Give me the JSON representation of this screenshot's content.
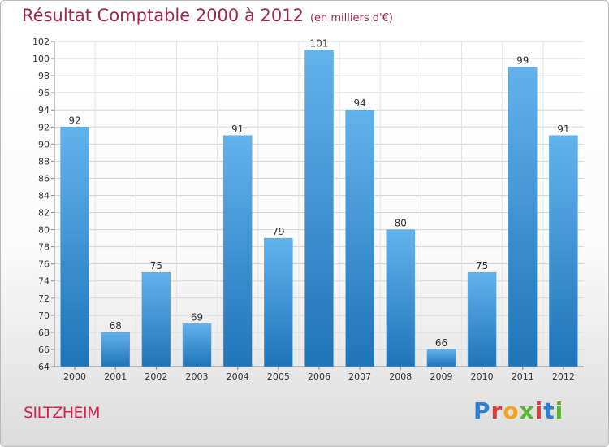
{
  "header": {
    "title": "Résultat Comptable 2000 à 2012",
    "subtitle": "(en milliers d'€)"
  },
  "footer": {
    "commune": "SILTZHEIM",
    "logo_text": "Proxiti",
    "logo_colors": [
      "#2e7fcf",
      "#e23a2e",
      "#f2a21c",
      "#5cb531",
      "#e23a2e",
      "#2e7fcf",
      "#5cb531"
    ]
  },
  "colors": {
    "bar_light": "#62b2ec",
    "bar_dark": "#1f74b8",
    "title": "#a0294b",
    "commune": "#d2234b"
  },
  "chart_data": {
    "type": "bar",
    "title": "Résultat Comptable 2000 à 2012",
    "subtitle": "(en milliers d'€)",
    "categories": [
      "2000",
      "2001",
      "2002",
      "2003",
      "2004",
      "2005",
      "2006",
      "2007",
      "2008",
      "2009",
      "2010",
      "2011",
      "2012"
    ],
    "values": [
      92,
      68,
      75,
      69,
      91,
      79,
      101,
      94,
      80,
      66,
      75,
      99,
      91
    ],
    "ylim": [
      64,
      102
    ],
    "yticks": [
      64,
      66,
      68,
      70,
      72,
      74,
      76,
      78,
      80,
      82,
      84,
      86,
      88,
      90,
      92,
      94,
      96,
      98,
      100,
      102
    ],
    "grid": true,
    "data_labels": true
  }
}
